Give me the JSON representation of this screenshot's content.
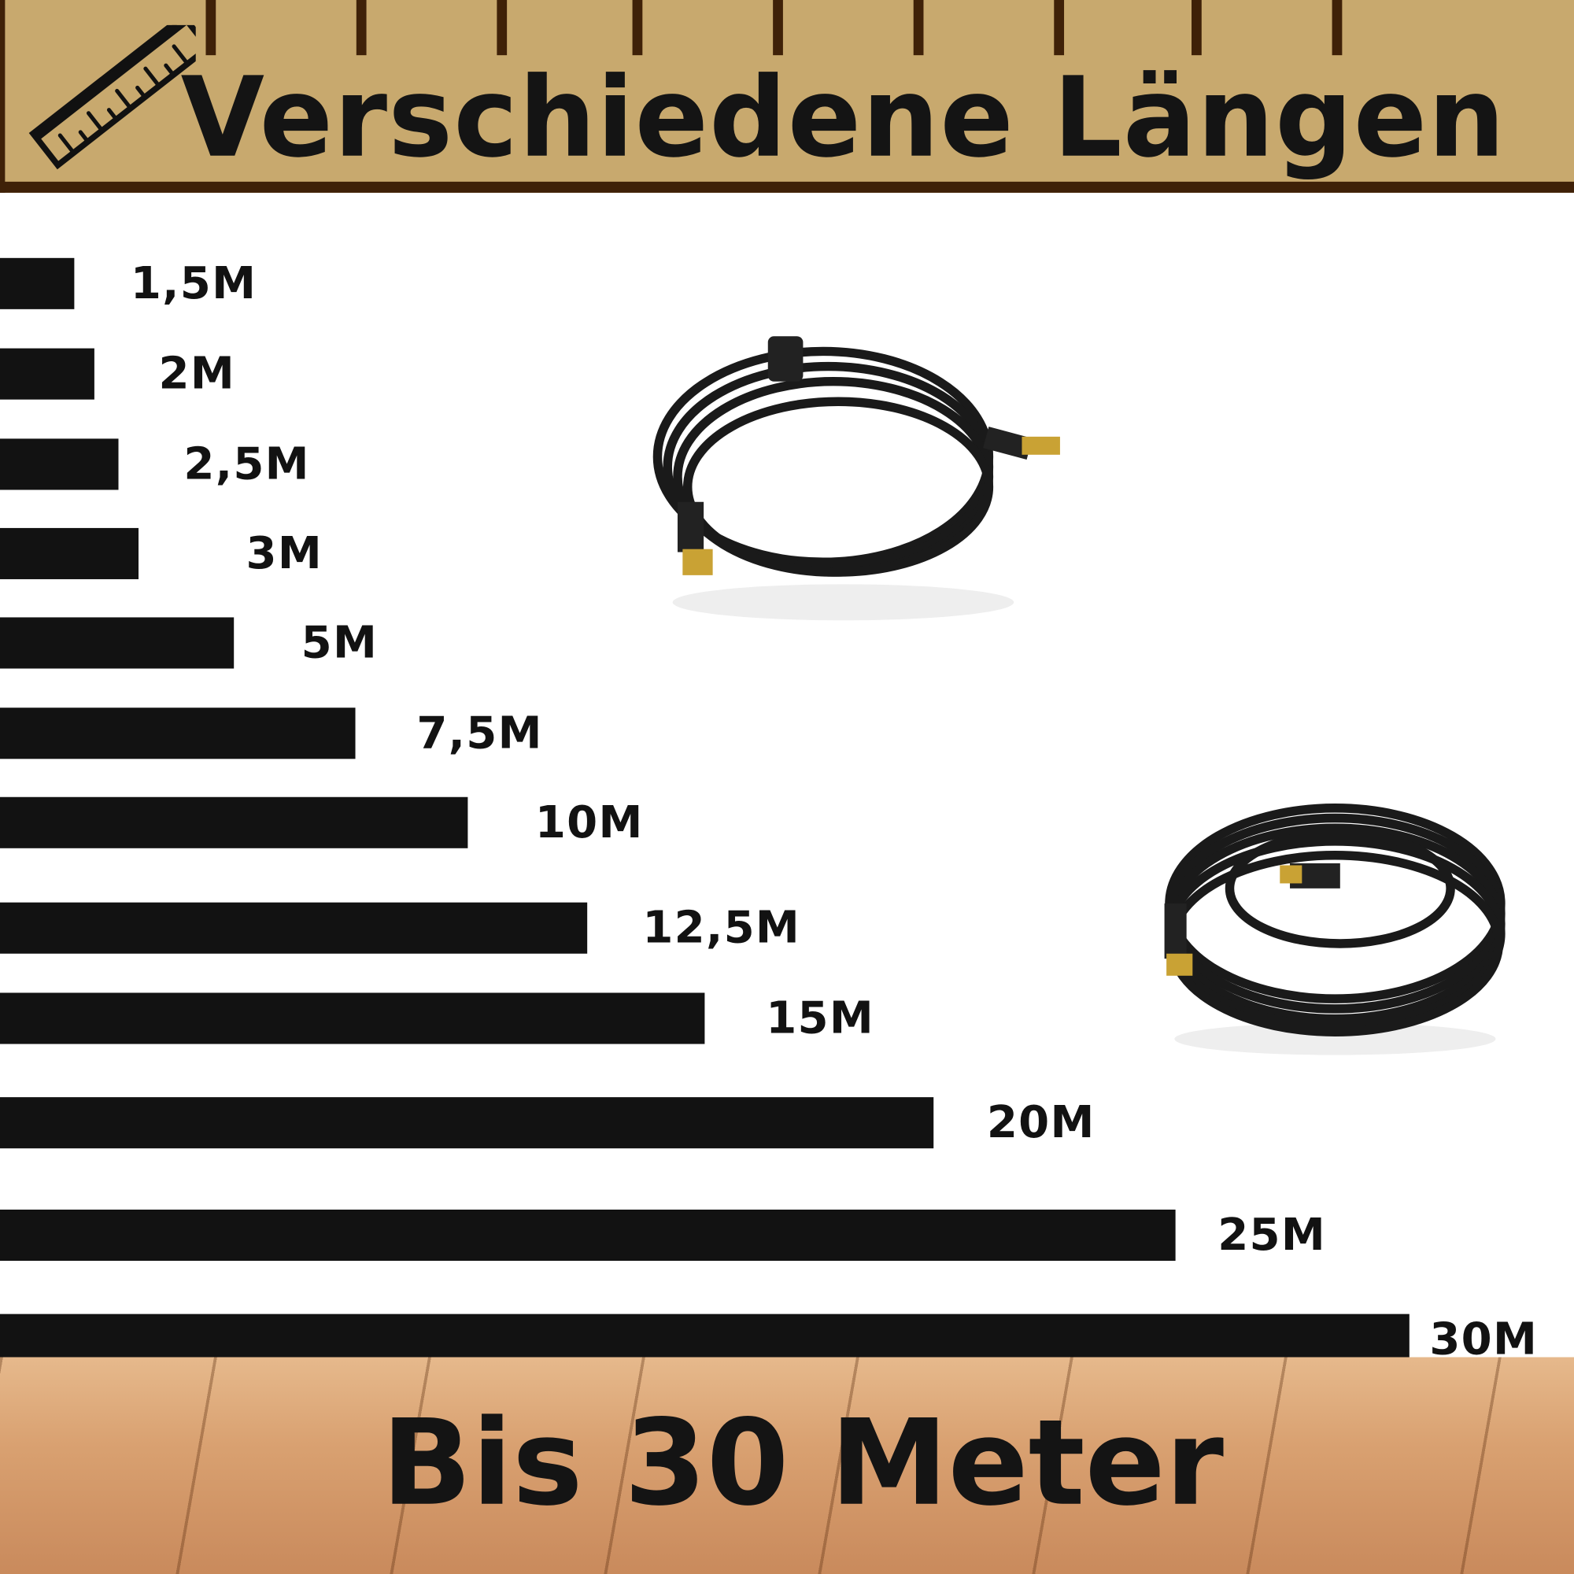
{
  "header": {
    "title": "Verschiedene Längen",
    "icon": "ruler-icon"
  },
  "footer": {
    "title": "Bis 30 Meter"
  },
  "colors": {
    "header_bg": "#C8A96E",
    "header_border": "#3F2108",
    "bars": "#121212"
  },
  "chart_data": {
    "type": "bar",
    "orientation": "horizontal",
    "categories": [
      "1,5M",
      "2M",
      "2,5M",
      "3M",
      "5M",
      "7,5M",
      "10M",
      "12,5M",
      "15M",
      "20M",
      "25M",
      "30M"
    ],
    "values": [
      1.5,
      2,
      2.5,
      3,
      5,
      7.5,
      10,
      12.5,
      15,
      20,
      25,
      30
    ],
    "labels": [
      "1,5M",
      "2M",
      "2,5M",
      "3M",
      "5M",
      "7,5M",
      "10M",
      "12,5M",
      "15M",
      "20M",
      "25M",
      "30M"
    ]
  },
  "images": [
    {
      "name": "coiled-coax-cable-short"
    },
    {
      "name": "coiled-coax-cable-long"
    }
  ]
}
